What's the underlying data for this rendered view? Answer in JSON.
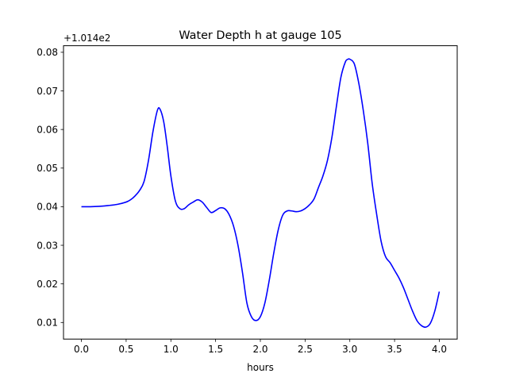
{
  "chart_data": {
    "type": "line",
    "title": "Water Depth h at gauge 105",
    "xlabel": "hours",
    "ylabel": "",
    "y_offset_label": "+1.014e2",
    "y_offset": 101.4,
    "xlim": [
      -0.2,
      4.2
    ],
    "ylim": [
      0.0057,
      0.0817
    ],
    "xticks": [
      0.0,
      0.5,
      1.0,
      1.5,
      2.0,
      2.5,
      3.0,
      3.5,
      4.0
    ],
    "xtick_labels": [
      "0.0",
      "0.5",
      "1.0",
      "1.5",
      "2.0",
      "2.5",
      "3.0",
      "3.5",
      "4.0"
    ],
    "yticks": [
      0.01,
      0.02,
      0.03,
      0.04,
      0.05,
      0.06,
      0.07,
      0.08
    ],
    "ytick_labels": [
      "0.01",
      "0.02",
      "0.03",
      "0.04",
      "0.05",
      "0.06",
      "0.07",
      "0.08"
    ],
    "grid": false,
    "series": [
      {
        "color": "#0000ff",
        "x": [
          0.0,
          0.1,
          0.2,
          0.3,
          0.4,
          0.5,
          0.55,
          0.6,
          0.65,
          0.7,
          0.75,
          0.8,
          0.85,
          0.88,
          0.92,
          0.96,
          1.0,
          1.05,
          1.1,
          1.15,
          1.2,
          1.25,
          1.3,
          1.35,
          1.4,
          1.45,
          1.5,
          1.55,
          1.6,
          1.65,
          1.7,
          1.75,
          1.8,
          1.85,
          1.9,
          1.95,
          2.0,
          2.05,
          2.1,
          2.15,
          2.2,
          2.25,
          2.3,
          2.35,
          2.4,
          2.45,
          2.5,
          2.55,
          2.6,
          2.65,
          2.7,
          2.75,
          2.8,
          2.85,
          2.9,
          2.95,
          2.98,
          3.0,
          3.05,
          3.1,
          3.15,
          3.2,
          3.25,
          3.3,
          3.35,
          3.4,
          3.45,
          3.5,
          3.55,
          3.6,
          3.65,
          3.7,
          3.75,
          3.8,
          3.85,
          3.9,
          3.95,
          4.0
        ],
        "y": [
          0.04,
          0.04,
          0.0401,
          0.0403,
          0.0406,
          0.0412,
          0.0418,
          0.0428,
          0.0442,
          0.0465,
          0.052,
          0.0595,
          0.065,
          0.0652,
          0.062,
          0.0555,
          0.048,
          0.0415,
          0.0395,
          0.0395,
          0.0405,
          0.0412,
          0.0418,
          0.0412,
          0.0398,
          0.0385,
          0.039,
          0.0397,
          0.0395,
          0.038,
          0.035,
          0.03,
          0.023,
          0.015,
          0.0115,
          0.0105,
          0.0115,
          0.015,
          0.021,
          0.028,
          0.034,
          0.0378,
          0.0389,
          0.0389,
          0.0387,
          0.0389,
          0.0395,
          0.0405,
          0.042,
          0.045,
          0.048,
          0.052,
          0.058,
          0.066,
          0.0735,
          0.0775,
          0.0782,
          0.0782,
          0.077,
          0.072,
          0.065,
          0.0565,
          0.046,
          0.038,
          0.031,
          0.027,
          0.0255,
          0.0235,
          0.0215,
          0.019,
          0.016,
          0.013,
          0.0105,
          0.0092,
          0.0088,
          0.0098,
          0.013,
          0.018
        ]
      }
    ]
  }
}
